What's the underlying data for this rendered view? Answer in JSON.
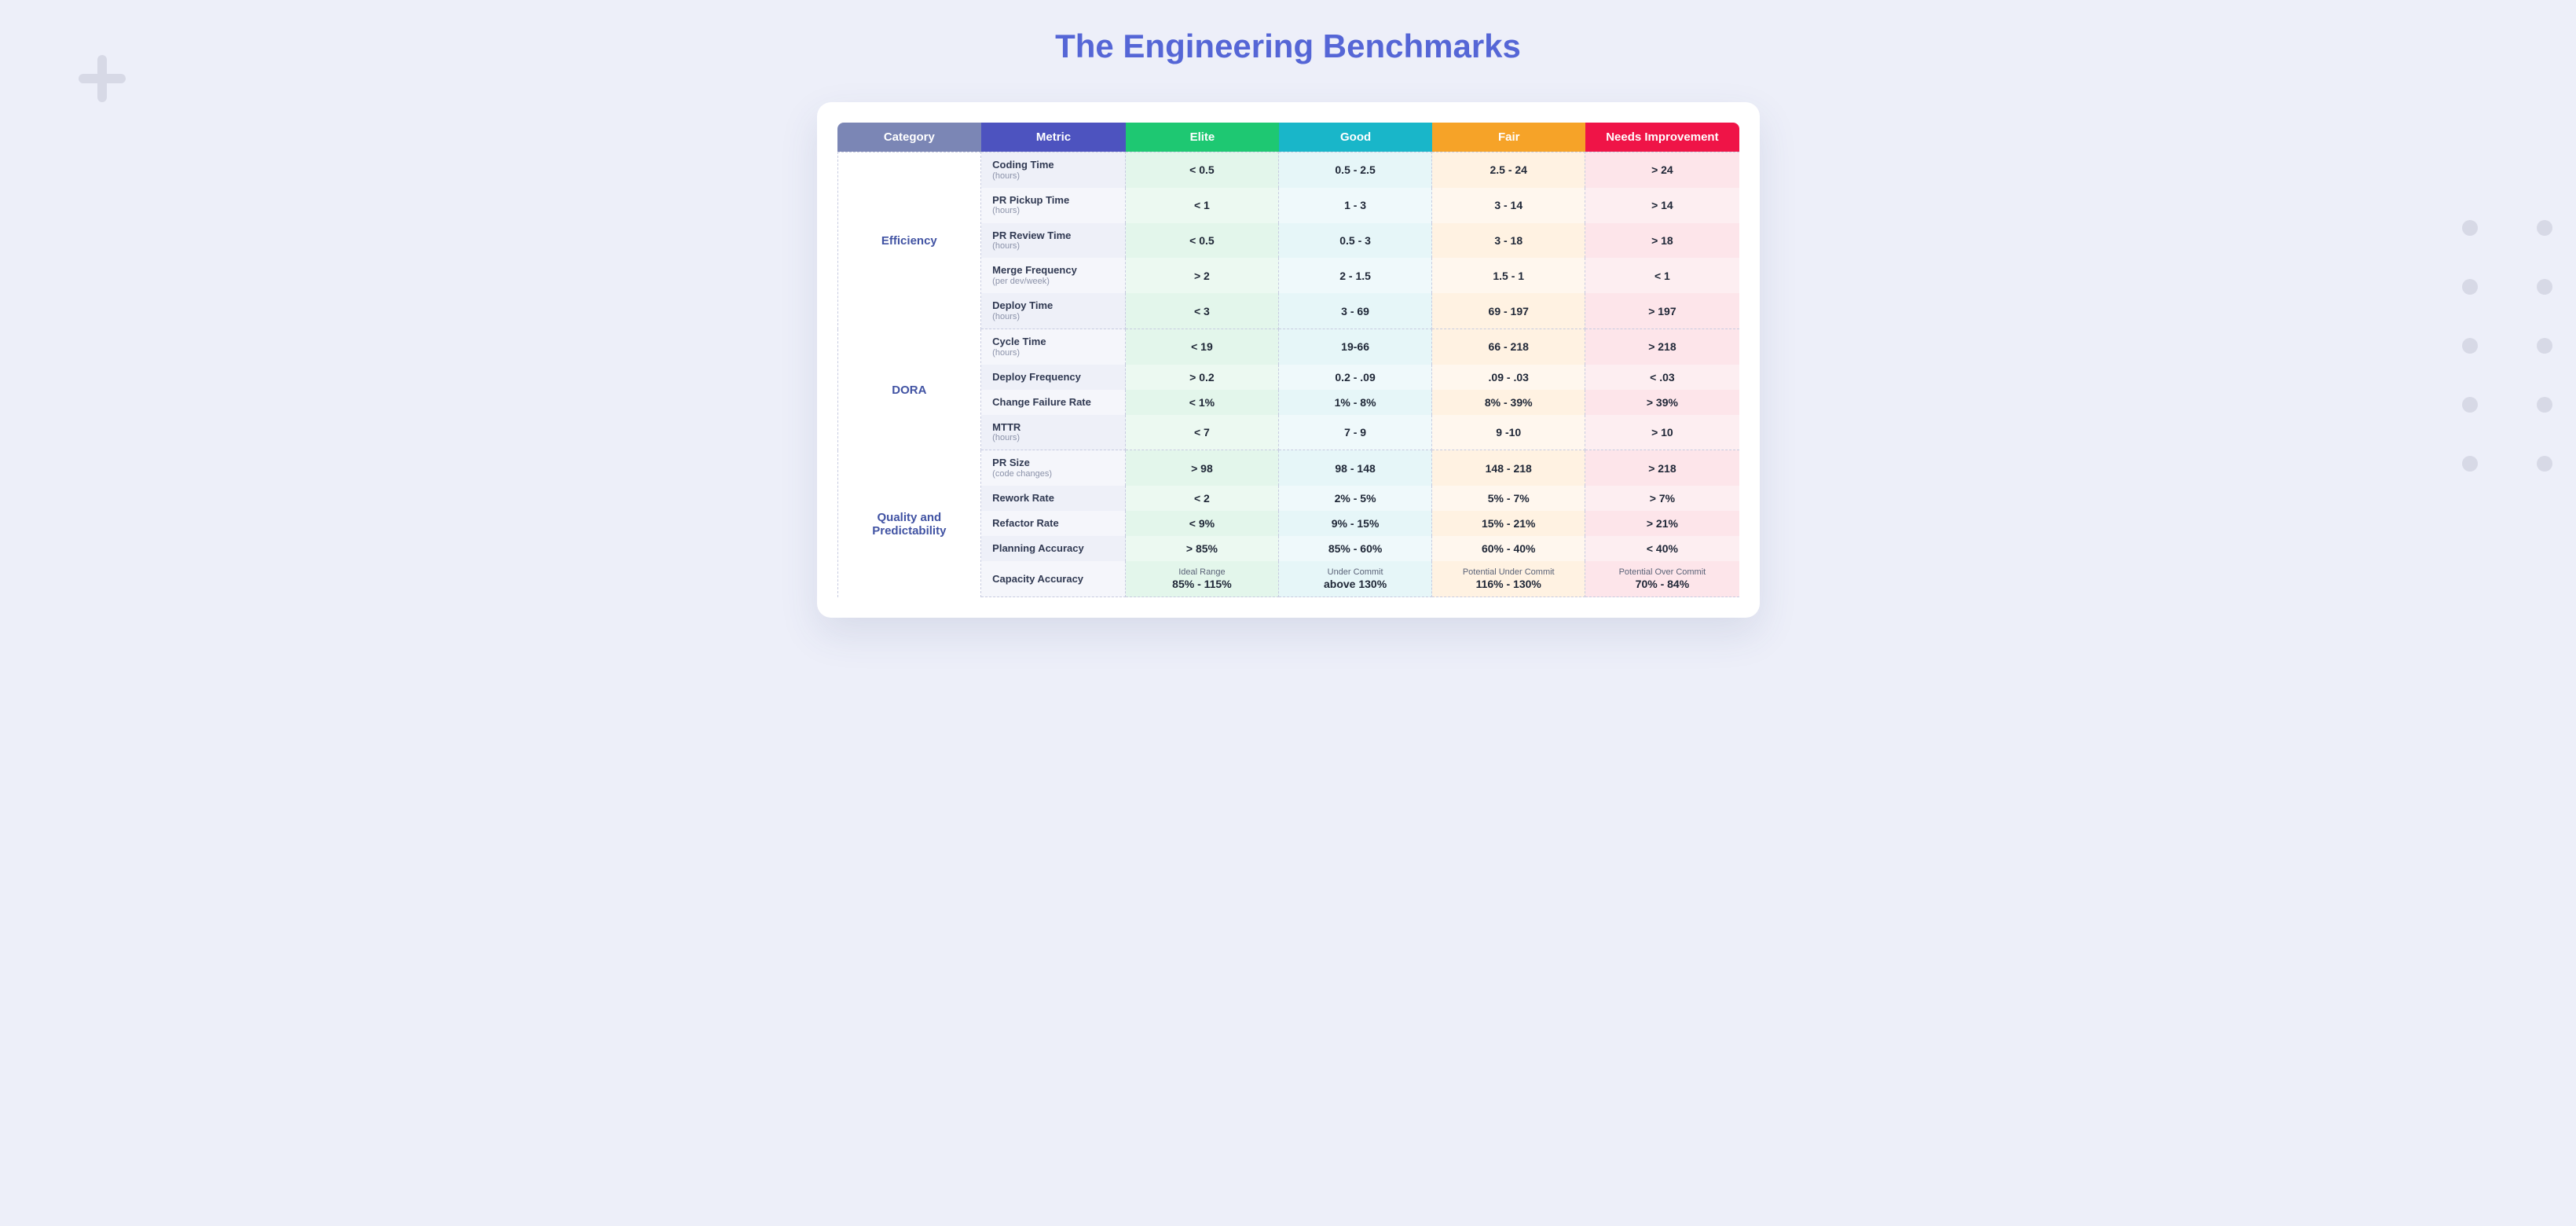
{
  "title": "The Engineering Benchmarks",
  "columns": [
    {
      "label": "Category",
      "bg": "#7b86b5"
    },
    {
      "label": "Metric",
      "bg": "#4d53bf"
    },
    {
      "label": "Elite",
      "bg": "#1ec872",
      "cell_bg": "#e3f6eb"
    },
    {
      "label": "Good",
      "bg": "#19b6c9",
      "cell_bg": "#e6f6f8"
    },
    {
      "label": "Fair",
      "bg": "#f6a328",
      "cell_bg": "#fff2e2"
    },
    {
      "label": "Needs Improvement",
      "bg": "#ef1447",
      "cell_bg": "#fde5ea"
    }
  ],
  "sections": [
    {
      "category": "Efficiency",
      "rows": [
        {
          "metric": "Coding Time",
          "unit": "(hours)",
          "elite": "< 0.5",
          "good": "0.5 - 2.5",
          "fair": "2.5 - 24",
          "needs": "> 24"
        },
        {
          "metric": "PR Pickup Time",
          "unit": "(hours)",
          "elite": "< 1",
          "good": "1 - 3",
          "fair": "3 - 14",
          "needs": "> 14"
        },
        {
          "metric": "PR Review Time",
          "unit": "(hours)",
          "elite": "< 0.5",
          "good": "0.5 - 3",
          "fair": "3 - 18",
          "needs": "> 18"
        },
        {
          "metric": "Merge Frequency",
          "unit": "(per dev/week)",
          "elite": "> 2",
          "good": "2 - 1.5",
          "fair": "1.5 - 1",
          "needs": "< 1"
        },
        {
          "metric": "Deploy Time",
          "unit": "(hours)",
          "elite": "< 3",
          "good": "3 - 69",
          "fair": "69 - 197",
          "needs": "> 197"
        }
      ]
    },
    {
      "category": "DORA",
      "rows": [
        {
          "metric": "Cycle Time",
          "unit": "(hours)",
          "elite": "< 19",
          "good": "19-66",
          "fair": "66 - 218",
          "needs": "> 218"
        },
        {
          "metric": "Deploy Frequency",
          "unit": "",
          "elite": "> 0.2",
          "good": "0.2 - .09",
          "fair": ".09 - .03",
          "needs": "< .03"
        },
        {
          "metric": "Change Failure Rate",
          "unit": "",
          "elite": "< 1%",
          "good": "1% - 8%",
          "fair": "8% - 39%",
          "needs": "> 39%"
        },
        {
          "metric": "MTTR",
          "unit": "(hours)",
          "elite": "< 7",
          "good": "7 - 9",
          "fair": "9 -10",
          "needs": "> 10"
        }
      ]
    },
    {
      "category": "Quality and Predictability",
      "rows": [
        {
          "metric": "PR Size",
          "unit": "(code changes)",
          "elite": "> 98",
          "good": "98 - 148",
          "fair": "148 - 218",
          "needs": "> 218"
        },
        {
          "metric": "Rework Rate",
          "unit": "",
          "elite": "< 2",
          "good": "2% - 5%",
          "fair": "5% - 7%",
          "needs": "> 7%"
        },
        {
          "metric": "Refactor Rate",
          "unit": "",
          "elite": "< 9%",
          "good": "9% - 15%",
          "fair": "15% - 21%",
          "needs": "> 21%"
        },
        {
          "metric": "Planning Accuracy",
          "unit": "",
          "elite": "> 85%",
          "good": "85% - 60%",
          "fair": "60% - 40%",
          "needs": "< 40%"
        },
        {
          "metric": "Capacity Accuracy",
          "unit": "",
          "elite_sup": "Ideal Range",
          "elite": "85% - 115%",
          "good_sup": "Under Commit",
          "good": "above 130%",
          "fair_sup": "Potential Under Commit",
          "fair": "116% - 130%",
          "needs_sup": "Potential Over Commit",
          "needs": "70% - 84%"
        }
      ]
    }
  ]
}
